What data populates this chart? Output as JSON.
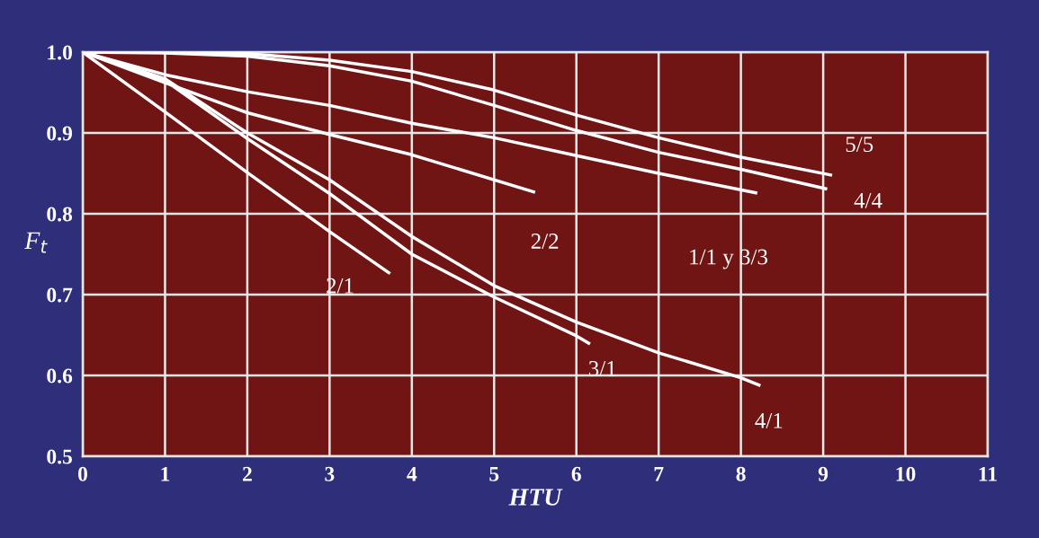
{
  "chart_data": {
    "type": "line",
    "xlabel": "HTU",
    "ylabel": "F$_{t}$",
    "xlim": [
      0,
      11
    ],
    "ylim": [
      0.5,
      1.0
    ],
    "xticks": [
      0,
      1,
      2,
      3,
      4,
      5,
      6,
      7,
      8,
      9,
      10,
      11
    ],
    "yticks": [
      0.5,
      0.6,
      0.7,
      0.8,
      0.9,
      {
        "value": 1.0,
        "label": "1.0"
      }
    ],
    "grid": true,
    "marker": "none",
    "line_style": "solid",
    "series": [
      {
        "name": "2/1",
        "color": "#ffffff",
        "x": [
          0,
          1,
          2,
          3,
          3.72
        ],
        "values": [
          1.0,
          0.926,
          0.851,
          0.778,
          0.727
        ]
      },
      {
        "name": "3/1",
        "color": "#ffffff",
        "x": [
          0,
          1,
          2,
          3,
          4,
          5,
          6,
          6.15
        ],
        "values": [
          1.0,
          0.965,
          0.893,
          0.825,
          0.75,
          0.697,
          0.649,
          0.64
        ]
      },
      {
        "name": "4/1",
        "color": "#ffffff",
        "x": [
          0,
          1,
          2,
          3,
          4,
          5,
          6,
          7,
          8,
          8.22
        ],
        "values": [
          1.0,
          0.967,
          0.9,
          0.842,
          0.772,
          0.711,
          0.666,
          0.628,
          0.597,
          0.588
        ]
      },
      {
        "name": "2/2",
        "color": "#ffffff",
        "x": [
          0,
          1,
          2,
          3,
          4,
          5.48
        ],
        "values": [
          1.0,
          0.962,
          0.925,
          0.898,
          0.873,
          0.827
        ]
      },
      {
        "name": "1/1 y 3/3",
        "color": "#ffffff",
        "x": [
          0,
          1,
          2,
          3,
          4,
          5,
          6,
          7,
          8.18
        ],
        "values": [
          1.0,
          0.972,
          0.951,
          0.934,
          0.912,
          0.894,
          0.872,
          0.85,
          0.826
        ]
      },
      {
        "name": "4/4",
        "color": "#ffffff",
        "x": [
          0,
          1,
          2,
          3,
          4,
          5,
          6,
          7,
          8,
          9.03
        ],
        "values": [
          1.0,
          0.999,
          0.995,
          0.983,
          0.964,
          0.934,
          0.903,
          0.876,
          0.855,
          0.831
        ]
      },
      {
        "name": "5/5",
        "color": "#ffffff",
        "x": [
          0,
          1,
          2,
          3,
          4,
          5,
          6,
          7,
          8,
          9.09
        ],
        "values": [
          1.0,
          1.0,
          0.998,
          0.99,
          0.976,
          0.953,
          0.922,
          0.894,
          0.87,
          0.848
        ]
      }
    ]
  }
}
